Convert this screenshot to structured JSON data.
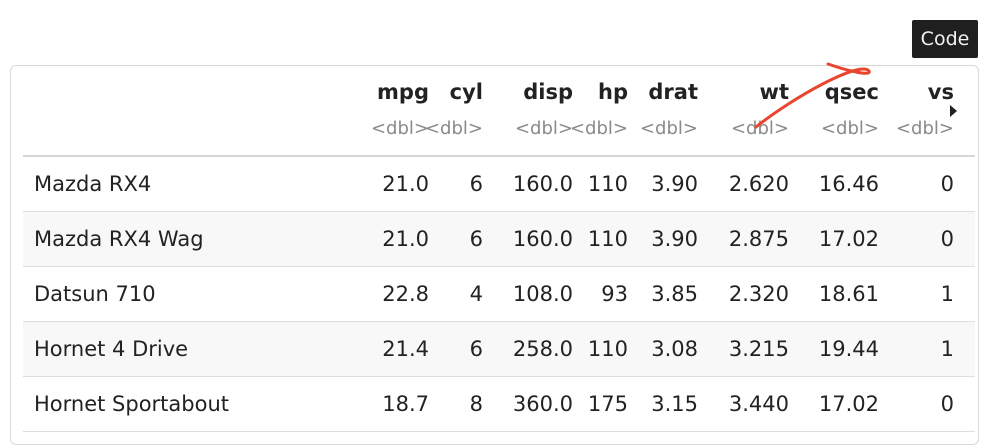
{
  "toolbar": {
    "code_label": "Code"
  },
  "table": {
    "columns": [
      {
        "name": "mpg",
        "type": "<dbl>"
      },
      {
        "name": "cyl",
        "type": "<dbl>"
      },
      {
        "name": "disp",
        "type": "<dbl>"
      },
      {
        "name": "hp",
        "type": "<dbl>"
      },
      {
        "name": "drat",
        "type": "<dbl>"
      },
      {
        "name": "wt",
        "type": "<dbl>"
      },
      {
        "name": "qsec",
        "type": "<dbl>"
      },
      {
        "name": "vs",
        "type": "<dbl>"
      }
    ],
    "rows": [
      {
        "name": "Mazda RX4",
        "values": [
          "21.0",
          "6",
          "160.0",
          "110",
          "3.90",
          "2.620",
          "16.46",
          "0"
        ]
      },
      {
        "name": "Mazda RX4 Wag",
        "values": [
          "21.0",
          "6",
          "160.0",
          "110",
          "3.90",
          "2.875",
          "17.02",
          "0"
        ]
      },
      {
        "name": "Datsun 710",
        "values": [
          "22.8",
          "4",
          "108.0",
          "93",
          "3.85",
          "2.320",
          "18.61",
          "1"
        ]
      },
      {
        "name": "Hornet 4 Drive",
        "values": [
          "21.4",
          "6",
          "258.0",
          "110",
          "3.08",
          "3.215",
          "19.44",
          "1"
        ]
      },
      {
        "name": "Hornet Sportabout",
        "values": [
          "18.7",
          "8",
          "360.0",
          "175",
          "3.15",
          "3.440",
          "17.02",
          "0"
        ]
      }
    ]
  },
  "colors": {
    "annotation_arrow": "#e8462f",
    "code_button_bg": "#1f1f1f"
  }
}
